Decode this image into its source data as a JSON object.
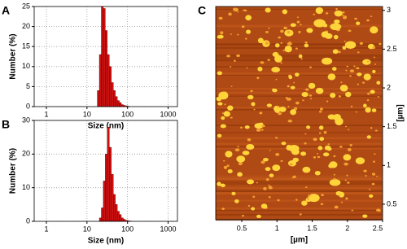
{
  "chart_data": [
    {
      "type": "histogram",
      "label": "A",
      "xlabel": "Size (nm)",
      "ylabel": "Number (%)",
      "xscale": "log",
      "xlim": [
        0.5,
        1700
      ],
      "xticks": [
        1,
        10,
        100,
        1000
      ],
      "ylim": [
        0,
        25
      ],
      "yticks": [
        0,
        5,
        10,
        15,
        20,
        25
      ],
      "grid": true,
      "color": "#cc1111",
      "bins": [
        18,
        20.2,
        22.6,
        25.3,
        28.3,
        31.7,
        35.5,
        39.8,
        44.6,
        50,
        56,
        62.7,
        70.2,
        78.7,
        88,
        98.7,
        110
      ],
      "values": [
        4,
        13,
        25,
        24.5,
        19,
        13,
        10,
        6,
        4,
        2.5,
        1.5,
        1,
        0.5,
        0.3,
        0.2,
        0.1
      ]
    },
    {
      "type": "histogram",
      "label": "B",
      "xlabel": "Size (nm)",
      "ylabel": "Number (%)",
      "xscale": "log",
      "xlim": [
        0.5,
        1700
      ],
      "xticks": [
        1,
        10,
        100,
        1000
      ],
      "ylim": [
        0,
        30
      ],
      "yticks": [
        0,
        10,
        20,
        30
      ],
      "grid": true,
      "color": "#cc1111",
      "bins": [
        20.2,
        22.6,
        25.3,
        28.3,
        31.7,
        35.5,
        39.8,
        44.6,
        50,
        56,
        62.7,
        70.2,
        78.7,
        88,
        98.7,
        110,
        123
      ],
      "values": [
        1,
        4,
        12,
        20,
        28,
        22,
        14,
        8,
        5,
        3,
        2,
        1,
        0.6,
        0.3,
        0.2,
        0.1
      ]
    },
    {
      "type": "image",
      "label": "C",
      "xlabel": "[µm]",
      "ylabel": "[µm]",
      "xlim": [
        0.13,
        2.5
      ],
      "xticks": [
        0.5,
        1,
        1.5,
        2,
        2.5
      ],
      "ylim": [
        0.3,
        3.05
      ],
      "yticks": [
        0.5,
        1,
        1.5,
        2,
        2.5,
        3
      ]
    }
  ]
}
